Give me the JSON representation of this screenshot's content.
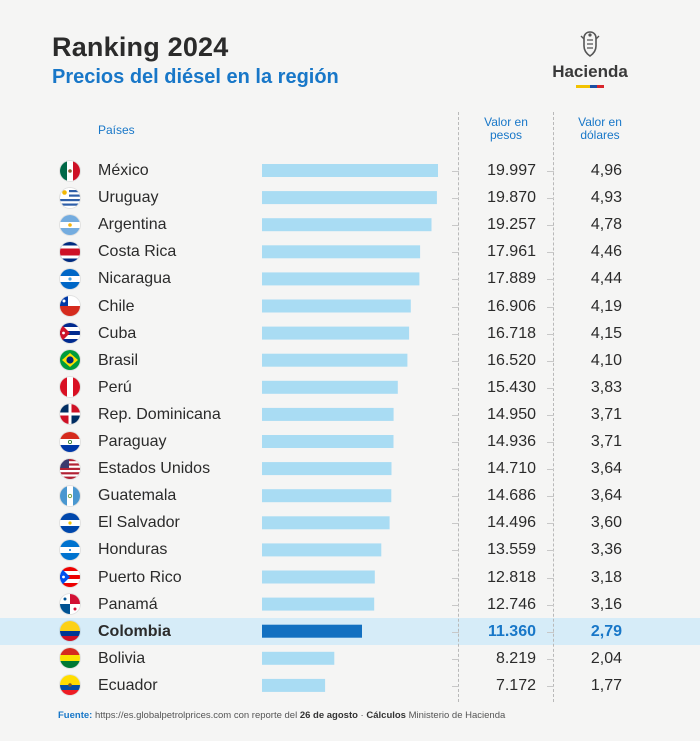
{
  "header": {
    "title": "Ranking 2024",
    "subtitle": "Precios del diésel en la región",
    "logo_text": "Hacienda"
  },
  "columns": {
    "countries": "Países",
    "pesos_line1": "Valor en",
    "pesos_line2": "pesos",
    "dollars_line1": "Valor en",
    "dollars_line2": "dólares"
  },
  "colors": {
    "bar": "#a9dcf3",
    "bar_highlight": "#1270c1",
    "highlight_row": "#d6ecf8",
    "accent": "#1877c8"
  },
  "chart_data": {
    "type": "bar",
    "orientation": "horizontal",
    "highlight": "Colombia",
    "categories": [
      "México",
      "Uruguay",
      "Argentina",
      "Costa Rica",
      "Nicaragua",
      "Chile",
      "Cuba",
      "Brasil",
      "Perú",
      "Rep. Dominicana",
      "Paraguay",
      "Estados Unidos",
      "Guatemala",
      "El Salvador",
      "Honduras",
      "Puerto Rico",
      "Panamá",
      "Colombia",
      "Bolivia",
      "Ecuador"
    ],
    "flags": [
      "mexico-flag-icon",
      "uruguay-flag-icon",
      "argentina-flag-icon",
      "costa-rica-flag-icon",
      "nicaragua-flag-icon",
      "chile-flag-icon",
      "cuba-flag-icon",
      "brasil-flag-icon",
      "peru-flag-icon",
      "rep-dominicana-flag-icon",
      "paraguay-flag-icon",
      "estados-unidos-flag-icon",
      "guatemala-flag-icon",
      "el-salvador-flag-icon",
      "honduras-flag-icon",
      "puerto-rico-flag-icon",
      "panama-flag-icon",
      "colombia-flag-icon",
      "bolivia-flag-icon",
      "ecuador-flag-icon"
    ],
    "series": [
      {
        "name": "Valor en pesos",
        "values": [
          19997,
          19870,
          19257,
          17961,
          17889,
          16906,
          16718,
          16520,
          15430,
          14950,
          14936,
          14710,
          14686,
          14496,
          13559,
          12818,
          12746,
          11360,
          8219,
          7172
        ],
        "labels": [
          "19.997",
          "19.870",
          "19.257",
          "17.961",
          "17.889",
          "16.906",
          "16.718",
          "16.520",
          "15.430",
          "14.950",
          "14.936",
          "14.710",
          "14.686",
          "14.496",
          "13.559",
          "12.818",
          "12.746",
          "11.360",
          "8.219",
          "7.172"
        ]
      },
      {
        "name": "Valor en dólares",
        "values": [
          4.96,
          4.93,
          4.78,
          4.46,
          4.44,
          4.19,
          4.15,
          4.1,
          3.83,
          3.71,
          3.71,
          3.64,
          3.64,
          3.6,
          3.36,
          3.18,
          3.16,
          2.79,
          2.04,
          1.77
        ],
        "labels": [
          "4,96",
          "4,93",
          "4,78",
          "4,46",
          "4,44",
          "4,19",
          "4,15",
          "4,10",
          "3,83",
          "3,71",
          "3,71",
          "3,64",
          "3,64",
          "3,60",
          "3,36",
          "3,18",
          "3,16",
          "2,79",
          "2,04",
          "1,77"
        ]
      }
    ]
  },
  "footer": {
    "source_label": "Fuente:",
    "source_text": " https://es.globalpetrolprices.com con reporte del ",
    "date": "26 de agosto",
    "separator": "  ·  ",
    "calc_label": "Cálculos",
    "calc_text": " Ministerio de Hacienda"
  }
}
